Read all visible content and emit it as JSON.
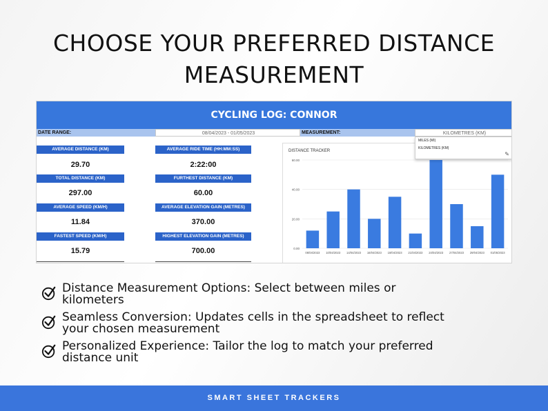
{
  "headline": {
    "line1": "CHOOSE YOUR PREFERRED DISTANCE",
    "line2": "MEASUREMENT"
  },
  "sheet": {
    "title": "CYCLING LOG: CONNOR",
    "date_range_label": "DATE RANGE:",
    "date_range_value": "08/04/2023 - 01/05/2023",
    "measurement_label": "MEASUREMENT:",
    "measurement_value": "KILOMETRES (KM)",
    "dropdown": {
      "options": [
        "MILES (MI)",
        "KILOMETRES (KM)"
      ]
    },
    "stats_left": [
      {
        "label": "AVERAGE DISTANCE (KM)",
        "value": "29.70"
      },
      {
        "label": "TOTAL DISTANCE (KM)",
        "value": "297.00"
      },
      {
        "label": "AVERAGE SPEED (KM/H)",
        "value": "11.84"
      },
      {
        "label": "FASTEST SPEED (KM/H)",
        "value": "15.79"
      }
    ],
    "stats_right": [
      {
        "label": "AVERAGE RIDE TIME (HH:MM:SS)",
        "value": "2:22:00"
      },
      {
        "label": "FURTHEST DISTANCE (KM)",
        "value": "60.00"
      },
      {
        "label": "AVERAGE ELEVATION GAIN (METRES)",
        "value": "370.00"
      },
      {
        "label": "HIGHEST ELEVATION GAIN (METRES)",
        "value": "700.00"
      }
    ]
  },
  "chart_data": {
    "type": "bar",
    "title": "DISTANCE TRACKER",
    "categories": [
      "08/04/2023",
      "10/04/2023",
      "14/04/2023",
      "16/04/2023",
      "18/04/2023",
      "21/04/2023",
      "24/04/2023",
      "27/04/2023",
      "29/04/2023",
      "01/05/2023"
    ],
    "values": [
      12,
      25,
      40,
      20,
      35,
      10,
      60,
      30,
      15,
      50
    ],
    "ylim": [
      0,
      60
    ],
    "yticks": [
      "0.00",
      "20.00",
      "40.00",
      "60.00"
    ],
    "bar_color": "#3a7be0",
    "grid": true
  },
  "features": [
    {
      "line1": "Distance Measurement Options: Select between miles or",
      "line2": "kilometers"
    },
    {
      "line1": "Seamless Conversion: Updates cells in the spreadsheet to reflect",
      "line2": "your chosen measurement"
    },
    {
      "line1": "Personalized Experience: Tailor the log to match your preferred",
      "line2": "distance unit"
    }
  ],
  "footer": {
    "text": "SMART SHEET TRACKERS"
  },
  "icons": {
    "feature_bullet": "check-circle-icon",
    "dropdown_edit": "pencil-icon"
  },
  "colors": {
    "accent": "#3777dc",
    "header_blue": "#2b63c9",
    "label_blue": "#a9c4ee"
  }
}
